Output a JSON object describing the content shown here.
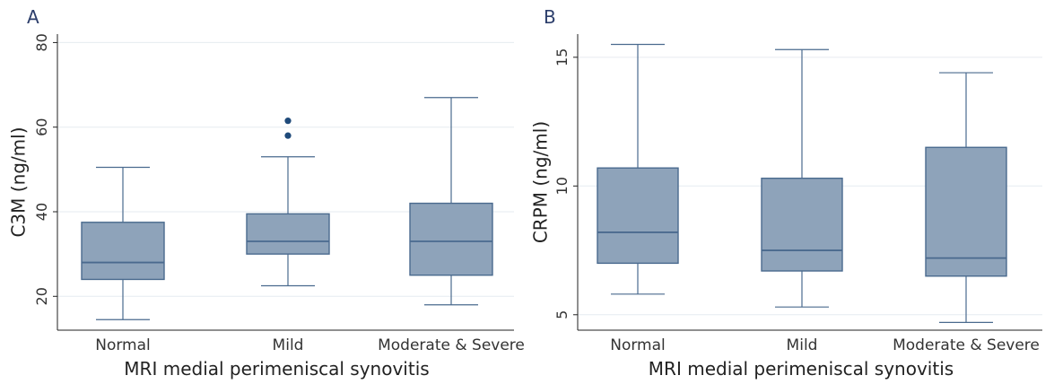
{
  "chart_data": [
    {
      "panel": "A",
      "type": "box",
      "xlabel": "MRI medial perimeniscal synovitis",
      "ylabel": "C3M (ng/ml)",
      "ylim": [
        12,
        82
      ],
      "yticks": [
        20,
        40,
        60,
        80
      ],
      "grid": true,
      "categories": [
        "Normal",
        "Mild",
        "Moderate & Severe"
      ],
      "boxes": [
        {
          "whisker_low": 14.5,
          "q1": 24,
          "median": 28,
          "q3": 37.5,
          "whisker_high": 50.5,
          "outliers": []
        },
        {
          "whisker_low": 22.5,
          "q1": 30,
          "median": 33,
          "q3": 39.5,
          "whisker_high": 53,
          "outliers": [
            58,
            61.5
          ]
        },
        {
          "whisker_low": 18,
          "q1": 25,
          "median": 33,
          "q3": 42,
          "whisker_high": 67,
          "outliers": []
        }
      ]
    },
    {
      "panel": "B",
      "type": "box",
      "xlabel": "MRI medial perimeniscal synovitis",
      "ylabel": "CRPM (ng/ml)",
      "ylim": [
        4.4,
        15.9
      ],
      "yticks": [
        5,
        10,
        15
      ],
      "grid": true,
      "categories": [
        "Normal",
        "Mild",
        "Moderate & Severe"
      ],
      "boxes": [
        {
          "whisker_low": 5.8,
          "q1": 7,
          "median": 8.2,
          "q3": 10.7,
          "whisker_high": 15.5,
          "outliers": []
        },
        {
          "whisker_low": 5.3,
          "q1": 6.7,
          "median": 7.5,
          "q3": 10.3,
          "whisker_high": 15.3,
          "outliers": []
        },
        {
          "whisker_low": 4.7,
          "q1": 6.5,
          "median": 7.2,
          "q3": 11.5,
          "whisker_high": 14.4,
          "outliers": []
        }
      ]
    }
  ],
  "colors": {
    "box_fill": "#8ea3ba",
    "box_stroke": "#4a6a8e",
    "outlier": "#1f4a7a",
    "grid": "#e6ebf0",
    "axis": "#222222"
  }
}
